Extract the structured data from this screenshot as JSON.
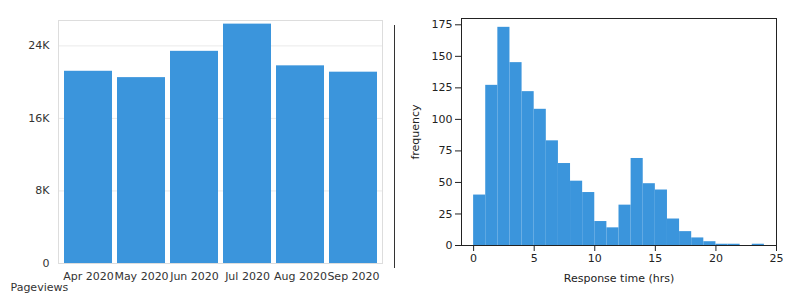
{
  "chart_data": [
    {
      "type": "bar",
      "categories": [
        "Apr 2020",
        "May 2020",
        "Jun 2020",
        "Jul 2020",
        "Aug 2020",
        "Sep 2020"
      ],
      "values": [
        21200,
        20500,
        23400,
        26400,
        21800,
        21100
      ],
      "color": "#3b95dc",
      "y_label": "Pageviews",
      "ylim": [
        0,
        26800
      ],
      "yticks": [
        0,
        {
          "value": 8000,
          "label": "8K"
        },
        {
          "value": 16000,
          "label": "16K"
        },
        {
          "value": 24000,
          "label": "24K"
        }
      ],
      "grid": true
    },
    {
      "type": "histogram",
      "bins": [
        0,
        1,
        2,
        3,
        4,
        5,
        6,
        7,
        8,
        9,
        10,
        11,
        12,
        13,
        14,
        15,
        16,
        17,
        18,
        19,
        20,
        21,
        22,
        23,
        24
      ],
      "counts": [
        40,
        127,
        173,
        145,
        122,
        108,
        83,
        65,
        51,
        42,
        19,
        14,
        32,
        69,
        49,
        44,
        21,
        11,
        6,
        3,
        1,
        1,
        0,
        1
      ],
      "color": "#3b95dc",
      "x_label": "Response time (hrs)",
      "y_label": "frequency",
      "xlim": [
        -1,
        25
      ],
      "xticks": [
        0,
        5,
        10,
        15,
        20,
        25
      ],
      "ylim": [
        0,
        180
      ],
      "yticks": [
        0,
        25,
        50,
        75,
        100,
        125,
        150,
        175
      ],
      "grid": false
    }
  ]
}
